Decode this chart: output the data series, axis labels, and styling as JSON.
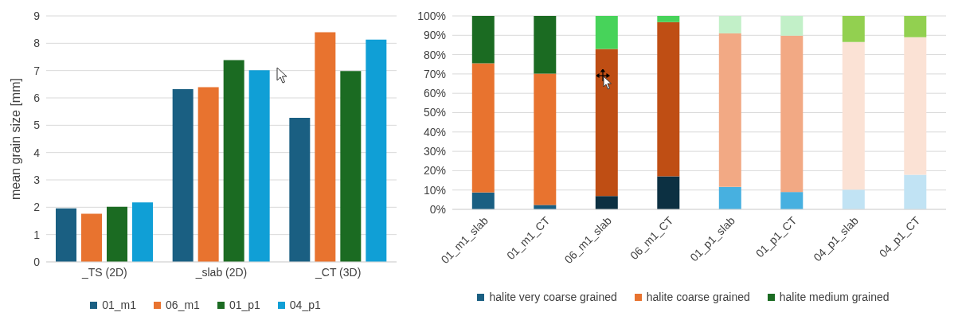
{
  "chart_data": [
    {
      "type": "bar",
      "ylabel": "mean grain size [mm]",
      "categories": [
        "_TS (2D)",
        "_slab (2D)",
        "_CT (3D)"
      ],
      "series": [
        {
          "name": "01_m1",
          "color": "#1a5f82",
          "values": [
            1.96,
            6.32,
            5.27
          ]
        },
        {
          "name": "06_m1",
          "color": "#e8732f",
          "values": [
            1.76,
            6.39,
            8.4
          ]
        },
        {
          "name": "01_p1",
          "color": "#1b6b22",
          "values": [
            2.02,
            7.38,
            6.98
          ]
        },
        {
          "name": "04_p1",
          "color": "#109fd6",
          "values": [
            2.18,
            7.01,
            8.13
          ]
        }
      ],
      "ylim": [
        0,
        9
      ],
      "yticks": [
        0,
        1,
        2,
        3,
        4,
        5,
        6,
        7,
        8,
        9
      ],
      "grid": "y",
      "legend": "bottom"
    },
    {
      "type": "bar",
      "stacked": true,
      "categories": [
        "01_m1_slab",
        "01_m1_CT",
        "06_m1_slab",
        "06_m1_CT",
        "01_p1_slab",
        "01_p1_CT",
        "04_p1_slab",
        "04_p1_CT"
      ],
      "series": [
        {
          "name": "halite very coarse grained",
          "color": "#1a5f82",
          "colors": [
            "#1a5f82",
            "#1a5f82",
            "#0c3042",
            "#0c3042",
            "#47b0e0",
            "#47b0e0",
            "#c1e3f4",
            "#c1e3f4"
          ],
          "values": [
            8.7,
            2.3,
            6.9,
            17.1,
            11.6,
            9,
            10.2,
            17.9
          ]
        },
        {
          "name": "halite coarse grained",
          "color": "#e8732f",
          "colors": [
            "#e8732f",
            "#e8732f",
            "#bf4e14",
            "#bf4e14",
            "#f2a984",
            "#f2a984",
            "#fbe2d5",
            "#fbe2d5"
          ],
          "values": [
            66.8,
            67.9,
            76,
            79.7,
            79.4,
            80.8,
            76.3,
            71.1
          ]
        },
        {
          "name": "halite medium grained",
          "color": "#1b6b22",
          "colors": [
            "#1b6b22",
            "#1b6b22",
            "#47d35a",
            "#47d35a",
            "#c2f0c8",
            "#c2f0c8",
            "#92d050",
            "#92d050"
          ],
          "values": [
            24.5,
            29.8,
            17.1,
            3.2,
            9,
            10.2,
            13.5,
            11
          ]
        }
      ],
      "ylim": [
        0,
        100
      ],
      "yticks": [
        {
          "value": 0,
          "label": "0%"
        },
        {
          "value": 10,
          "label": "10%"
        },
        {
          "value": 20,
          "label": "20%"
        },
        {
          "value": 30,
          "label": "30%"
        },
        {
          "value": 40,
          "label": "40%"
        },
        {
          "value": 50,
          "label": "50%"
        },
        {
          "value": 60,
          "label": "60%"
        },
        {
          "value": 70,
          "label": "70%"
        },
        {
          "value": 80,
          "label": "80%"
        },
        {
          "value": 90,
          "label": "90%"
        },
        {
          "value": 100,
          "label": "100%"
        }
      ],
      "grid": "y",
      "legend": "bottom"
    }
  ]
}
